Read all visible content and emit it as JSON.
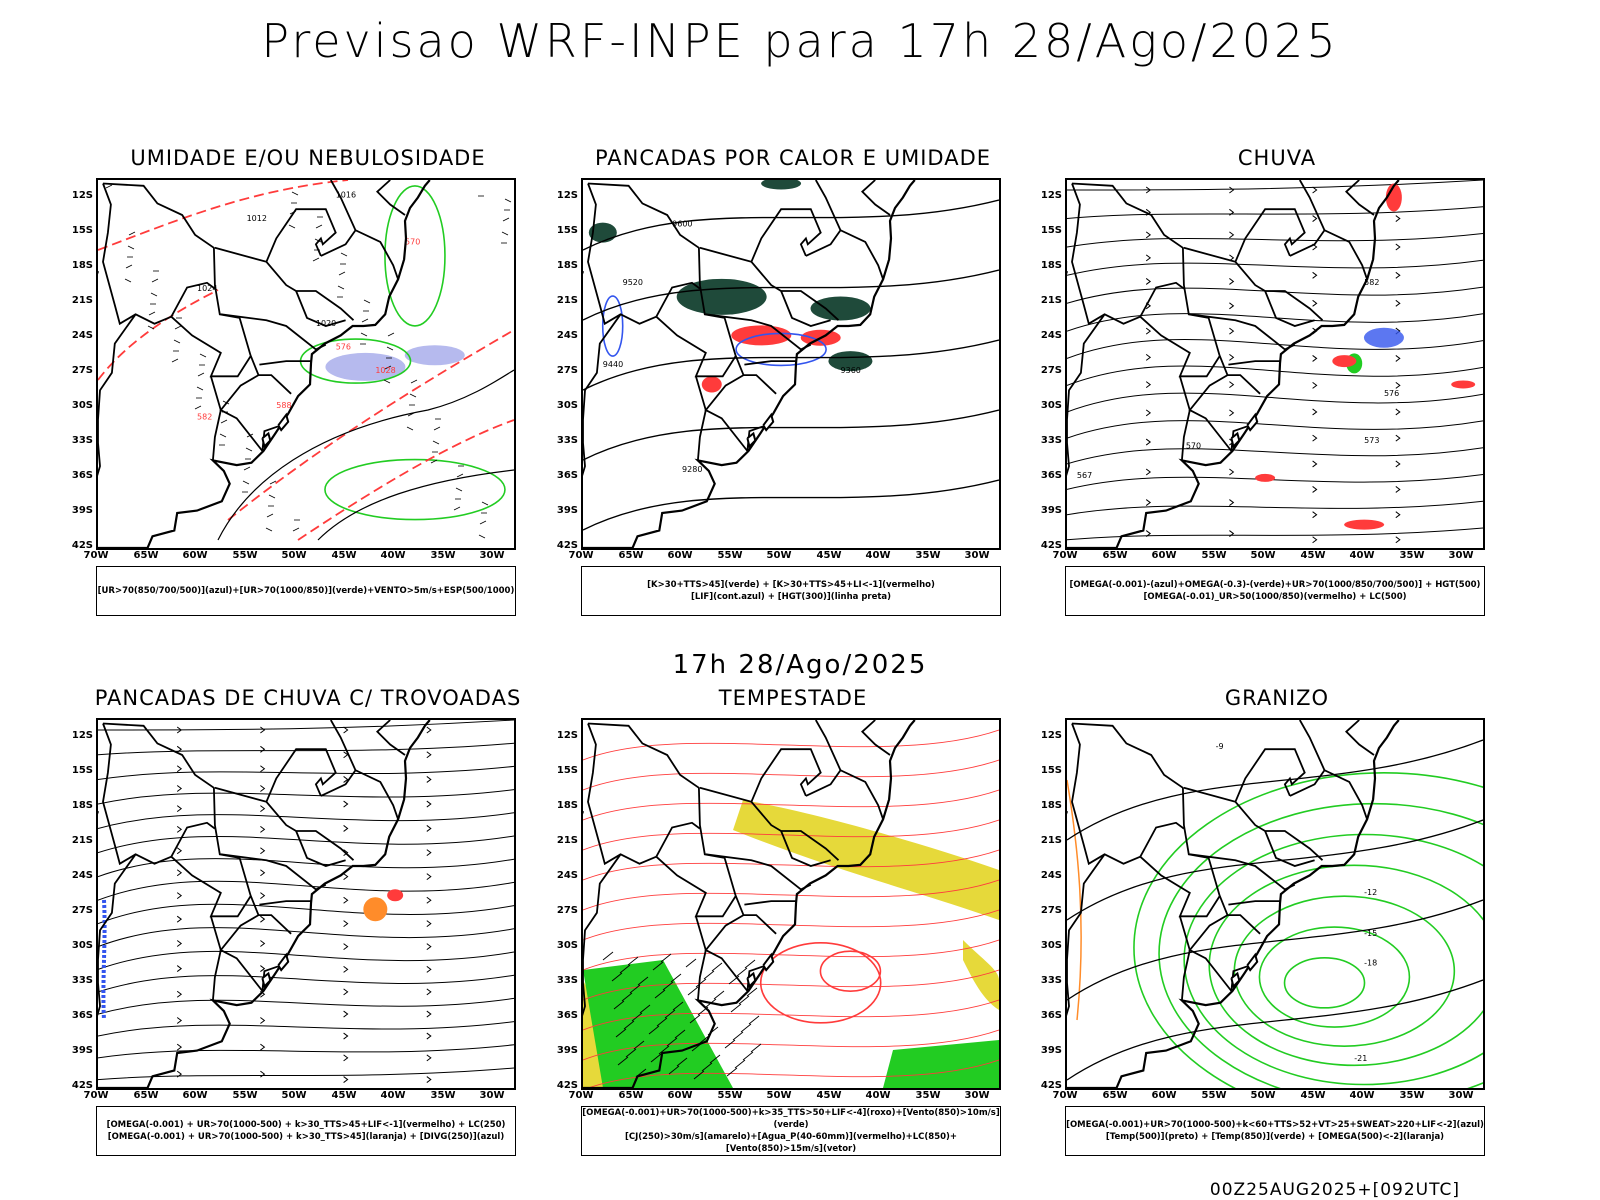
{
  "main_title": "Previsao WRF-INPE  para 17h 28/Ago/2025",
  "sub_title": "17h 28/Ago/2025",
  "footer": "00Z25AUG2025+[092UTC]",
  "lat_labels": [
    "12S",
    "15S",
    "18S",
    "21S",
    "24S",
    "27S",
    "30S",
    "33S",
    "36S",
    "39S",
    "42S"
  ],
  "lon_labels": [
    "70W",
    "65W",
    "60W",
    "55W",
    "50W",
    "45W",
    "40W",
    "35W",
    "30W"
  ],
  "panels": [
    {
      "title": "UMIDADE E/OU NEBULOSIDADE",
      "legend": [
        "[UR>70(850/700/500)](azul)+[UR>70(1000/850)](verde)+VENTO>5m/s+ESP(500/1000)"
      ],
      "contour_labels": [
        "1012",
        "1016",
        "1020",
        "1024",
        "1028",
        "570",
        "576",
        "582",
        "588"
      ]
    },
    {
      "title": "PANCADAS POR CALOR E UMIDADE",
      "legend": [
        "[K>30+TTS>45](verde) + [K>30+TTS>45+LI<-1](vermelho)",
        "[LIF](cont.azul) + [HGT(300)](linha preta)"
      ],
      "contour_labels": [
        "9600",
        "9520",
        "9440",
        "9360",
        "9280"
      ]
    },
    {
      "title": "CHUVA",
      "legend": [
        "[OMEGA(-0.001)-(azul)+OMEGA(-0.3)-(verde)+UR>70(1000/850/700/500)] + HGT(500)",
        "[OMEGA(-0.01)_UR>50(1000/850)(vermelho) + LC(500)"
      ],
      "contour_labels": [
        "582",
        "576",
        "573",
        "570",
        "567"
      ]
    },
    {
      "title": "PANCADAS DE CHUVA C/ TROVOADAS",
      "legend": [
        "[OMEGA(-0.001) + UR>70(1000-500) + k>30_TTS>45+LIF<-1](vermelho) + LC(250)",
        "[OMEGA(-0.001) + UR>70(1000-500) + k>30_TTS>45](laranja) + [DIVG(250)](azul)"
      ],
      "contour_labels": []
    },
    {
      "title": "TEMPESTADE",
      "legend": [
        "[OMEGA(-0.001)+UR>70(1000-500)+k>35_TTS>50+LIF<-4](roxo)+[Vento(850)>10m/s](verde)",
        "[CJ(250)>30m/s](amarelo)+[Agua_P(40-60mm)](vermelho)+LC(850)+[Vento(850)>15m/s](vetor)"
      ],
      "contour_labels": []
    },
    {
      "title": "GRANIZO",
      "legend": [
        "[OMEGA(-0.001)+UR>70(1000-500)+k<60+TTS>52+VT>25+SWEAT>220+LIF<-2](azul)",
        "[Temp(500)](preto) + [Temp(850)](verde) + [OMEGA(500)<-2](laranja)"
      ],
      "contour_labels": [
        "-9",
        "-12",
        "-15",
        "-18",
        "-21"
      ]
    }
  ],
  "colors": {
    "red": "#ff3b3b",
    "green": "#22cc22",
    "blue": "#3355ee",
    "darkgreen": "#1f4a3a",
    "yellow": "#e6d93a",
    "orange": "#ff8c2a",
    "lavender": "#aeb2ec"
  }
}
